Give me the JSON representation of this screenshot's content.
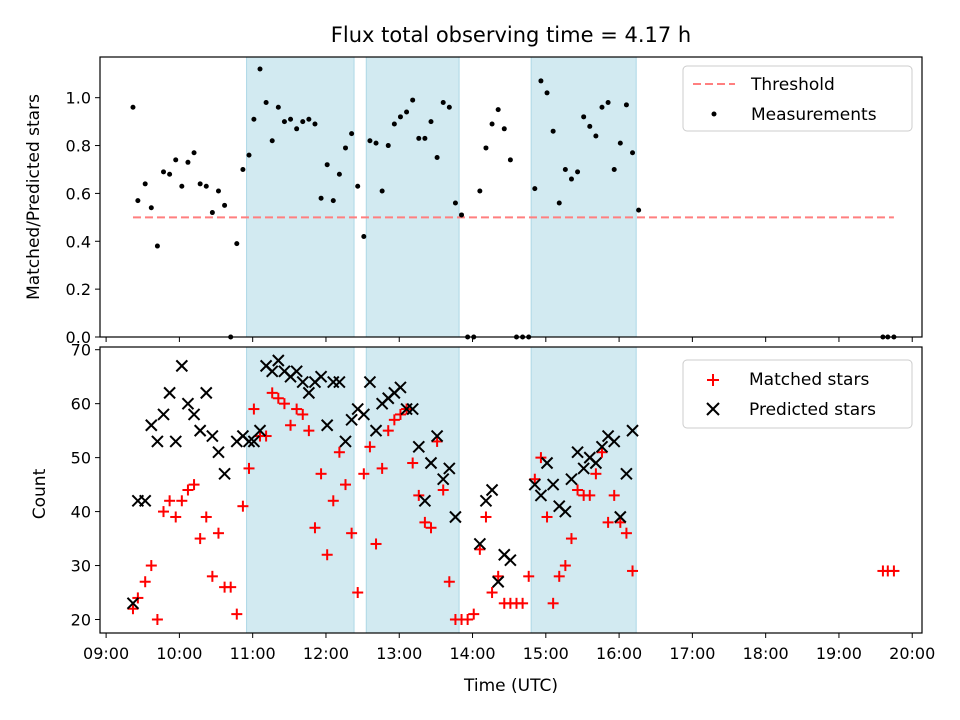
{
  "figure_title": "Flux total observing time = 4.17 h",
  "chart_data": [
    {
      "type": "scatter",
      "ylabel": "Matched/Predicted stars",
      "xlim": [
        "08:55",
        "20:08"
      ],
      "ylim": [
        0,
        1.17
      ],
      "yticks": [
        "0.0",
        "0.2",
        "0.4",
        "0.6",
        "0.8",
        "1.0"
      ],
      "grid": false,
      "legend_position": "top-right",
      "shaded_intervals": [
        [
          "10:55",
          "12:23"
        ],
        [
          "12:33",
          "13:49"
        ],
        [
          "14:48",
          "16:14"
        ]
      ],
      "shade_color": "#add8e6",
      "threshold": {
        "name": "Threshold",
        "value": 0.5,
        "x": [
          "09:22",
          "19:45"
        ],
        "color": "#ff7f7f"
      },
      "series": [
        {
          "name": "Measurements",
          "color": "#000000",
          "marker": "dot",
          "points": [
            [
              "09:22",
              0.96
            ],
            [
              "09:26",
              0.57
            ],
            [
              "09:32",
              0.64
            ],
            [
              "09:37",
              0.54
            ],
            [
              "09:42",
              0.38
            ],
            [
              "09:47",
              0.69
            ],
            [
              "09:52",
              0.68
            ],
            [
              "09:57",
              0.74
            ],
            [
              "10:02",
              0.63
            ],
            [
              "10:07",
              0.73
            ],
            [
              "10:12",
              0.77
            ],
            [
              "10:17",
              0.64
            ],
            [
              "10:22",
              0.63
            ],
            [
              "10:27",
              0.52
            ],
            [
              "10:32",
              0.61
            ],
            [
              "10:37",
              0.55
            ],
            [
              "10:42",
              0.0
            ],
            [
              "10:47",
              0.39
            ],
            [
              "10:52",
              0.7
            ],
            [
              "10:57",
              0.76
            ],
            [
              "11:01",
              0.91
            ],
            [
              "11:06",
              1.12
            ],
            [
              "11:11",
              0.98
            ],
            [
              "11:16",
              0.82
            ],
            [
              "11:21",
              0.96
            ],
            [
              "11:26",
              0.9
            ],
            [
              "11:31",
              0.91
            ],
            [
              "11:36",
              0.87
            ],
            [
              "11:41",
              0.9
            ],
            [
              "11:46",
              0.91
            ],
            [
              "11:51",
              0.89
            ],
            [
              "11:56",
              0.58
            ],
            [
              "12:01",
              0.72
            ],
            [
              "12:06",
              0.57
            ],
            [
              "12:11",
              0.68
            ],
            [
              "12:16",
              0.79
            ],
            [
              "12:21",
              0.85
            ],
            [
              "12:26",
              0.63
            ],
            [
              "12:31",
              0.42
            ],
            [
              "12:36",
              0.82
            ],
            [
              "12:41",
              0.81
            ],
            [
              "12:46",
              0.61
            ],
            [
              "12:51",
              0.8
            ],
            [
              "12:56",
              0.89
            ],
            [
              "13:01",
              0.92
            ],
            [
              "13:06",
              0.94
            ],
            [
              "13:11",
              0.99
            ],
            [
              "13:16",
              0.83
            ],
            [
              "13:21",
              0.83
            ],
            [
              "13:26",
              0.9
            ],
            [
              "13:31",
              0.75
            ],
            [
              "13:36",
              0.98
            ],
            [
              "13:41",
              0.96
            ],
            [
              "13:46",
              0.56
            ],
            [
              "13:51",
              0.51
            ],
            [
              "13:56",
              0.0
            ],
            [
              "14:01",
              0.0
            ],
            [
              "14:06",
              0.61
            ],
            [
              "14:11",
              0.79
            ],
            [
              "14:16",
              0.89
            ],
            [
              "14:21",
              0.95
            ],
            [
              "14:26",
              0.87
            ],
            [
              "14:31",
              0.74
            ],
            [
              "14:36",
              0.0
            ],
            [
              "14:41",
              0.0
            ],
            [
              "14:46",
              0.0
            ],
            [
              "14:51",
              0.62
            ],
            [
              "14:56",
              1.07
            ],
            [
              "15:01",
              1.02
            ],
            [
              "15:06",
              0.86
            ],
            [
              "15:11",
              0.56
            ],
            [
              "15:16",
              0.7
            ],
            [
              "15:21",
              0.66
            ],
            [
              "15:26",
              0.69
            ],
            [
              "15:31",
              0.92
            ],
            [
              "15:36",
              0.88
            ],
            [
              "15:41",
              0.84
            ],
            [
              "15:46",
              0.96
            ],
            [
              "15:51",
              0.98
            ],
            [
              "15:56",
              0.7
            ],
            [
              "16:01",
              0.81
            ],
            [
              "16:06",
              0.97
            ],
            [
              "16:11",
              0.77
            ],
            [
              "16:16",
              0.53
            ],
            [
              "19:36",
              0.0
            ],
            [
              "19:40",
              0.0
            ],
            [
              "19:45",
              0.0
            ]
          ]
        }
      ]
    },
    {
      "type": "scatter",
      "xlabel": "Time (UTC)",
      "ylabel": "Count",
      "xlim": [
        "08:55",
        "20:08"
      ],
      "ylim": [
        17.5,
        70.5
      ],
      "yticks": [
        "20",
        "30",
        "40",
        "50",
        "60",
        "70"
      ],
      "xticks": [
        "09:00",
        "10:00",
        "11:00",
        "12:00",
        "13:00",
        "14:00",
        "15:00",
        "16:00",
        "17:00",
        "18:00",
        "19:00",
        "20:00"
      ],
      "grid": false,
      "legend_position": "top-right",
      "shaded_intervals": [
        [
          "10:55",
          "12:23"
        ],
        [
          "12:33",
          "13:49"
        ],
        [
          "14:48",
          "16:14"
        ]
      ],
      "shade_color": "#add8e6",
      "series": [
        {
          "name": "Matched stars",
          "color": "#ff0000",
          "marker": "plus",
          "points": [
            [
              "09:22",
              22
            ],
            [
              "09:26",
              24
            ],
            [
              "09:32",
              27
            ],
            [
              "09:37",
              30
            ],
            [
              "09:42",
              20
            ],
            [
              "09:47",
              40
            ],
            [
              "09:52",
              42
            ],
            [
              "09:57",
              39
            ],
            [
              "10:02",
              42
            ],
            [
              "10:07",
              44
            ],
            [
              "10:12",
              45
            ],
            [
              "10:17",
              35
            ],
            [
              "10:22",
              39
            ],
            [
              "10:27",
              28
            ],
            [
              "10:32",
              36
            ],
            [
              "10:37",
              26
            ],
            [
              "10:42",
              26
            ],
            [
              "10:47",
              21
            ],
            [
              "10:52",
              41
            ],
            [
              "10:57",
              48
            ],
            [
              "11:01",
              59
            ],
            [
              "11:06",
              54
            ],
            [
              "11:11",
              54
            ],
            [
              "11:16",
              62
            ],
            [
              "11:21",
              61
            ],
            [
              "11:26",
              60
            ],
            [
              "11:31",
              56
            ],
            [
              "11:36",
              59
            ],
            [
              "11:41",
              58
            ],
            [
              "11:46",
              55
            ],
            [
              "11:51",
              37
            ],
            [
              "11:56",
              47
            ],
            [
              "12:01",
              32
            ],
            [
              "12:06",
              42
            ],
            [
              "12:11",
              51
            ],
            [
              "12:16",
              45
            ],
            [
              "12:21",
              36
            ],
            [
              "12:26",
              25
            ],
            [
              "12:31",
              47
            ],
            [
              "12:36",
              52
            ],
            [
              "12:41",
              34
            ],
            [
              "12:46",
              48
            ],
            [
              "12:51",
              55
            ],
            [
              "12:56",
              57
            ],
            [
              "13:01",
              58
            ],
            [
              "13:06",
              59
            ],
            [
              "13:11",
              49
            ],
            [
              "13:16",
              43
            ],
            [
              "13:21",
              38
            ],
            [
              "13:26",
              37
            ],
            [
              "13:31",
              53
            ],
            [
              "13:36",
              44
            ],
            [
              "13:41",
              27
            ],
            [
              "13:46",
              20
            ],
            [
              "13:51",
              20
            ],
            [
              "13:56",
              20
            ],
            [
              "14:01",
              21
            ],
            [
              "14:06",
              33
            ],
            [
              "14:11",
              39
            ],
            [
              "14:16",
              25
            ],
            [
              "14:21",
              28
            ],
            [
              "14:26",
              23
            ],
            [
              "14:31",
              23
            ],
            [
              "14:36",
              23
            ],
            [
              "14:41",
              23
            ],
            [
              "14:46",
              28
            ],
            [
              "14:51",
              46
            ],
            [
              "14:56",
              50
            ],
            [
              "15:01",
              39
            ],
            [
              "15:06",
              23
            ],
            [
              "15:11",
              28
            ],
            [
              "15:16",
              30
            ],
            [
              "15:21",
              35
            ],
            [
              "15:26",
              44
            ],
            [
              "15:31",
              43
            ],
            [
              "15:36",
              43
            ],
            [
              "15:41",
              47
            ],
            [
              "15:46",
              51
            ],
            [
              "15:51",
              38
            ],
            [
              "15:56",
              43
            ],
            [
              "16:01",
              38
            ],
            [
              "16:06",
              36
            ],
            [
              "16:11",
              29
            ],
            [
              "19:36",
              29
            ],
            [
              "19:40",
              29
            ],
            [
              "19:45",
              29
            ]
          ]
        },
        {
          "name": "Predicted stars",
          "color": "#000000",
          "marker": "x",
          "points": [
            [
              "09:22",
              23
            ],
            [
              "09:26",
              42
            ],
            [
              "09:32",
              42
            ],
            [
              "09:37",
              56
            ],
            [
              "09:42",
              53
            ],
            [
              "09:47",
              58
            ],
            [
              "09:52",
              62
            ],
            [
              "09:57",
              53
            ],
            [
              "10:02",
              67
            ],
            [
              "10:07",
              60
            ],
            [
              "10:12",
              58
            ],
            [
              "10:17",
              55
            ],
            [
              "10:22",
              62
            ],
            [
              "10:27",
              54
            ],
            [
              "10:32",
              51
            ],
            [
              "10:37",
              47
            ],
            [
              "10:47",
              53
            ],
            [
              "10:52",
              54
            ],
            [
              "10:57",
              53
            ],
            [
              "11:01",
              53
            ],
            [
              "11:06",
              55
            ],
            [
              "11:11",
              67
            ],
            [
              "11:16",
              66
            ],
            [
              "11:21",
              68
            ],
            [
              "11:26",
              66
            ],
            [
              "11:31",
              65
            ],
            [
              "11:36",
              66
            ],
            [
              "11:41",
              64
            ],
            [
              "11:46",
              62
            ],
            [
              "11:51",
              64
            ],
            [
              "11:56",
              65
            ],
            [
              "12:01",
              56
            ],
            [
              "12:06",
              64
            ],
            [
              "12:11",
              64
            ],
            [
              "12:16",
              53
            ],
            [
              "12:21",
              57
            ],
            [
              "12:26",
              59
            ],
            [
              "12:31",
              58
            ],
            [
              "12:36",
              64
            ],
            [
              "12:41",
              55
            ],
            [
              "12:46",
              60
            ],
            [
              "12:51",
              61
            ],
            [
              "12:56",
              62
            ],
            [
              "13:01",
              63
            ],
            [
              "13:06",
              59
            ],
            [
              "13:11",
              59
            ],
            [
              "13:16",
              52
            ],
            [
              "13:21",
              42
            ],
            [
              "13:26",
              49
            ],
            [
              "13:31",
              54
            ],
            [
              "13:36",
              46
            ],
            [
              "13:41",
              48
            ],
            [
              "13:46",
              39
            ],
            [
              "14:06",
              34
            ],
            [
              "14:11",
              42
            ],
            [
              "14:16",
              44
            ],
            [
              "14:21",
              27
            ],
            [
              "14:26",
              32
            ],
            [
              "14:31",
              31
            ],
            [
              "14:51",
              45
            ],
            [
              "14:56",
              43
            ],
            [
              "15:01",
              49
            ],
            [
              "15:06",
              45
            ],
            [
              "15:11",
              41
            ],
            [
              "15:16",
              40
            ],
            [
              "15:21",
              46
            ],
            [
              "15:26",
              51
            ],
            [
              "15:31",
              48
            ],
            [
              "15:36",
              50
            ],
            [
              "15:41",
              49
            ],
            [
              "15:46",
              52
            ],
            [
              "15:51",
              54
            ],
            [
              "15:56",
              53
            ],
            [
              "16:01",
              39
            ],
            [
              "16:06",
              47
            ],
            [
              "16:11",
              55
            ]
          ]
        }
      ]
    }
  ]
}
